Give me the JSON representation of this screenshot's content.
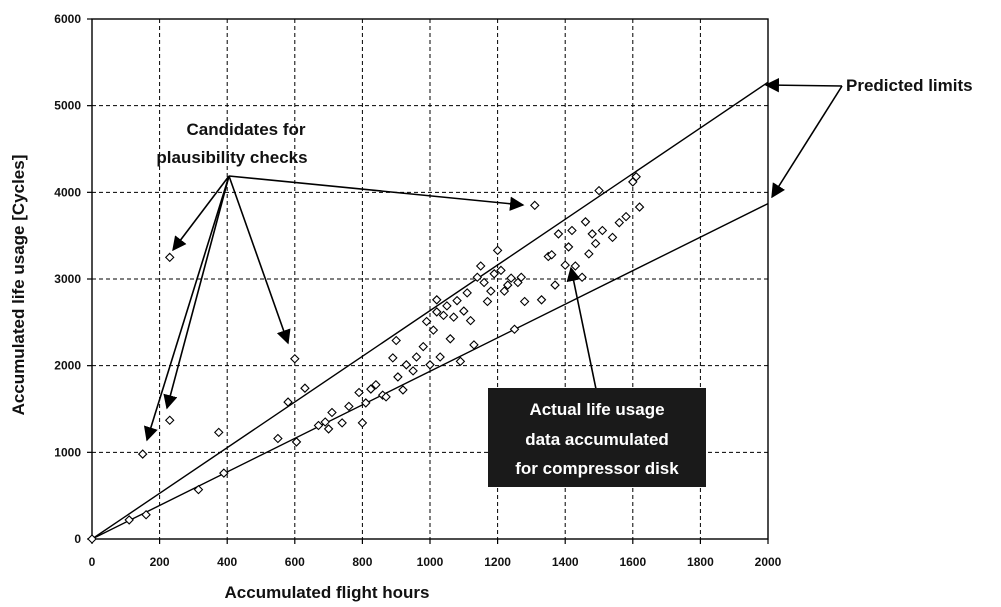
{
  "chart_data": {
    "type": "scatter",
    "title": "",
    "xlabel": "Accumulated flight hours",
    "ylabel": "Accumulated life usage [Cycles]",
    "xlim": [
      0,
      2000
    ],
    "ylim": [
      0,
      6000
    ],
    "x_ticks": [
      0,
      200,
      400,
      600,
      800,
      1000,
      1200,
      1400,
      1600,
      1800,
      2000
    ],
    "x_tick_labels": [
      "0",
      "200",
      "400",
      "600",
      "800",
      "1000",
      "1200",
      "1400",
      "1600",
      "1800",
      "2000"
    ],
    "y_ticks": [
      0,
      1000,
      2000,
      3000,
      4000,
      5000,
      6000
    ],
    "y_tick_labels": [
      "0",
      "1000",
      "2000",
      "3000",
      "4000",
      "5000",
      "6000"
    ],
    "grid": true,
    "points": [
      [
        0,
        0
      ],
      [
        110,
        220
      ],
      [
        160,
        280
      ],
      [
        150,
        980
      ],
      [
        230,
        3250
      ],
      [
        230,
        1370
      ],
      [
        315,
        570
      ],
      [
        375,
        1230
      ],
      [
        390,
        760
      ],
      [
        550,
        1160
      ],
      [
        580,
        1580
      ],
      [
        600,
        2080
      ],
      [
        605,
        1120
      ],
      [
        630,
        1740
      ],
      [
        670,
        1310
      ],
      [
        690,
        1350
      ],
      [
        700,
        1270
      ],
      [
        710,
        1460
      ],
      [
        740,
        1340
      ],
      [
        760,
        1530
      ],
      [
        790,
        1690
      ],
      [
        800,
        1340
      ],
      [
        810,
        1570
      ],
      [
        825,
        1730
      ],
      [
        840,
        1780
      ],
      [
        860,
        1660
      ],
      [
        870,
        1640
      ],
      [
        890,
        2090
      ],
      [
        900,
        2290
      ],
      [
        905,
        1870
      ],
      [
        920,
        1720
      ],
      [
        930,
        2010
      ],
      [
        950,
        1940
      ],
      [
        960,
        2100
      ],
      [
        980,
        2220
      ],
      [
        990,
        2510
      ],
      [
        1000,
        2010
      ],
      [
        1010,
        2410
      ],
      [
        1020,
        2620
      ],
      [
        1020,
        2760
      ],
      [
        1030,
        2100
      ],
      [
        1040,
        2580
      ],
      [
        1050,
        2690
      ],
      [
        1060,
        2310
      ],
      [
        1070,
        2560
      ],
      [
        1080,
        2750
      ],
      [
        1090,
        2050
      ],
      [
        1100,
        2630
      ],
      [
        1110,
        2840
      ],
      [
        1120,
        2520
      ],
      [
        1130,
        2240
      ],
      [
        1140,
        3020
      ],
      [
        1150,
        3150
      ],
      [
        1160,
        2960
      ],
      [
        1170,
        2740
      ],
      [
        1180,
        2860
      ],
      [
        1190,
        3060
      ],
      [
        1200,
        3330
      ],
      [
        1210,
        3100
      ],
      [
        1220,
        2860
      ],
      [
        1230,
        2930
      ],
      [
        1240,
        3010
      ],
      [
        1250,
        2420
      ],
      [
        1260,
        2960
      ],
      [
        1270,
        3020
      ],
      [
        1280,
        2740
      ],
      [
        1310,
        3850
      ],
      [
        1330,
        2760
      ],
      [
        1350,
        3260
      ],
      [
        1360,
        3280
      ],
      [
        1370,
        2930
      ],
      [
        1380,
        3520
      ],
      [
        1400,
        3160
      ],
      [
        1410,
        3370
      ],
      [
        1420,
        3560
      ],
      [
        1430,
        3150
      ],
      [
        1450,
        3020
      ],
      [
        1460,
        3660
      ],
      [
        1470,
        3290
      ],
      [
        1480,
        3520
      ],
      [
        1490,
        3410
      ],
      [
        1500,
        4020
      ],
      [
        1510,
        3560
      ],
      [
        1540,
        3480
      ],
      [
        1560,
        3650
      ],
      [
        1580,
        3720
      ],
      [
        1600,
        4120
      ],
      [
        1610,
        4180
      ],
      [
        1620,
        3830
      ]
    ],
    "limit_lines": [
      {
        "name": "upper",
        "from": [
          0,
          0
        ],
        "to": [
          2000,
          5270
        ]
      },
      {
        "name": "lower",
        "from": [
          0,
          0
        ],
        "to": [
          2000,
          3870
        ]
      }
    ],
    "annotations": {
      "candidates": {
        "lines": [
          "Candidates for",
          "plausibility checks"
        ]
      },
      "predicted": {
        "text": "Predicted limits"
      },
      "actual": {
        "lines": [
          "Actual life usage",
          "data accumulated",
          "for compressor disk"
        ]
      }
    },
    "colors": {
      "axis": "#000000",
      "grid": "#000000",
      "markers": "#000000",
      "box": "#1a1a1a"
    }
  }
}
